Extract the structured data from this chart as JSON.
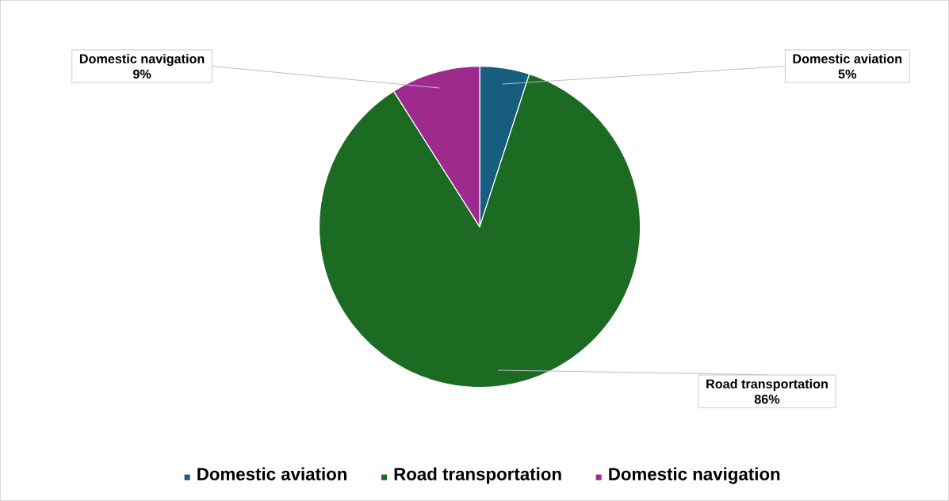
{
  "chart_data": {
    "type": "pie",
    "categories": [
      "Domestic aviation",
      "Road transportation",
      "Domestic navigation"
    ],
    "values": [
      5,
      86,
      9
    ],
    "colors": [
      "#175e7e",
      "#1b6b22",
      "#9e2a8e"
    ],
    "value_labels": [
      "5%",
      "86%",
      "9%"
    ],
    "legend": "bottom"
  }
}
